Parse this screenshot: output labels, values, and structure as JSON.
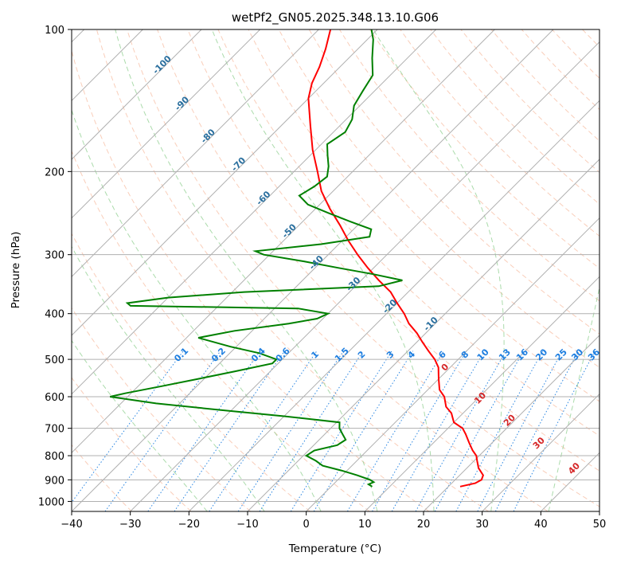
{
  "chart_data": {
    "type": "line",
    "title": "wetPf2_GN05.2025.348.13.10.G06",
    "xlabel": "Temperature (°C)",
    "ylabel": "Pressure (hPa)",
    "xlim": [
      -40,
      50
    ],
    "ylim": [
      1050,
      100
    ],
    "yscale": "log",
    "x_ticks": [
      -40,
      -30,
      -20,
      -10,
      0,
      10,
      20,
      30,
      40,
      50
    ],
    "y_ticks": [
      100,
      200,
      300,
      400,
      500,
      600,
      700,
      800,
      900,
      1000
    ],
    "grid": true,
    "colors": {
      "temperature": "#ff0000",
      "dewpoint": "#008000",
      "skewed_isotherms": "#b0b0b0",
      "dry_adiabats": "#f4a582",
      "moist_adiabats": "#8fcf8f",
      "mixing_ratio": "#1f7fe0",
      "mixing_labels": "#1f7fe0",
      "dry_labels": "#2a6f9e",
      "moist_labels": "#d62728"
    },
    "series": [
      {
        "key": "temperature",
        "p": [
          930,
          915,
          900,
          880,
          850,
          820,
          800,
          780,
          750,
          720,
          700,
          680,
          650,
          630,
          600,
          580,
          550,
          520,
          500,
          480,
          460,
          440,
          420,
          400,
          380,
          360,
          340,
          320,
          300,
          280,
          260,
          240,
          220,
          200,
          180,
          160,
          140,
          130,
          120,
          110,
          100
        ],
        "t": [
          22,
          24,
          24.5,
          24,
          22,
          20.5,
          19.5,
          18,
          16,
          14,
          12.5,
          10,
          8,
          6,
          4,
          2,
          0,
          -2,
          -4,
          -6.5,
          -9,
          -11.5,
          -14.5,
          -17,
          -20,
          -23,
          -27,
          -31,
          -35,
          -39,
          -43,
          -47.5,
          -52,
          -56,
          -60.5,
          -65,
          -70,
          -72,
          -73.5,
          -75.5,
          -78
        ]
      },
      {
        "key": "dewpoint",
        "p": [
          930,
          920,
          910,
          900,
          880,
          860,
          840,
          820,
          800,
          780,
          760,
          740,
          720,
          700,
          680,
          660,
          640,
          620,
          600,
          590,
          570,
          550,
          530,
          510,
          500,
          485,
          470,
          450,
          435,
          420,
          410,
          400,
          390,
          385,
          380,
          370,
          360,
          350,
          340,
          330,
          320,
          310,
          300,
          295,
          285,
          275,
          265,
          255,
          245,
          235,
          225,
          215,
          205,
          195,
          185,
          175,
          165,
          155,
          145,
          135,
          125,
          115,
          105,
          100
        ],
        "t": [
          7,
          6,
          6.5,
          5.5,
          2.5,
          -1,
          -5,
          -7,
          -9.5,
          -9,
          -6,
          -5.5,
          -7,
          -8.5,
          -9.5,
          -20,
          -32,
          -44,
          -53,
          -51,
          -46,
          -41,
          -36,
          -31,
          -31,
          -35,
          -41,
          -48,
          -43,
          -35,
          -31,
          -30,
          -36,
          -65,
          -66,
          -60,
          -48,
          -26,
          -23,
          -29,
          -36,
          -43,
          -51,
          -53,
          -43,
          -36,
          -37,
          -42,
          -47,
          -52,
          -55,
          -54,
          -53.5,
          -55,
          -57,
          -59,
          -58,
          -59,
          -61,
          -62,
          -63,
          -66,
          -69,
          -71
        ]
      }
    ],
    "mixing_ratio_labels": [
      "0.1",
      "0.2",
      "0.4",
      "0.6",
      "1",
      "1.5",
      "2",
      "3",
      "4",
      "6",
      "8",
      "10",
      "13",
      "16",
      "20",
      "25",
      "30",
      "36"
    ],
    "dry_adiabat_labels": [
      "-100",
      "-90",
      "-80",
      "-70",
      "-60",
      "-50",
      "-40",
      "-30",
      "-20",
      "-10"
    ],
    "moist_adiabat_labels": [
      "0",
      "10",
      "20",
      "30",
      "40"
    ]
  }
}
